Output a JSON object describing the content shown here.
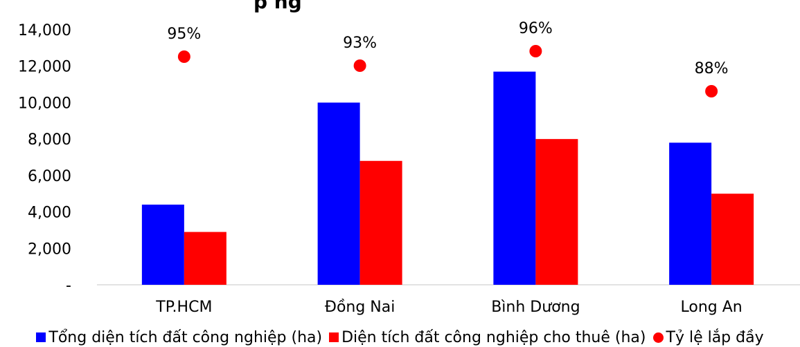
{
  "chart_data": {
    "type": "bar",
    "title_fragment": "p ng",
    "categories": [
      "TP.HCM",
      "Đồng Nai",
      "Bình Dương",
      "Long An"
    ],
    "y_tick_labels": [
      "-",
      "2,000",
      "4,000",
      "6,000",
      "8,000",
      "10,000",
      "12,000",
      "14,000"
    ],
    "ylim": [
      0,
      14000
    ],
    "grid": false,
    "legend_position": "bottom",
    "series": [
      {
        "name": "Tổng diện tích đất công nghiệp (ha)",
        "type": "bar",
        "color": "#0000ff",
        "values": [
          4400,
          10000,
          11700,
          7800
        ]
      },
      {
        "name": "Diện tích đất công nghiệp cho thuê (ha)",
        "type": "bar",
        "color": "#ff0000",
        "values": [
          2900,
          6800,
          8000,
          5000
        ]
      },
      {
        "name": "Tỷ lệ lắp đầy",
        "type": "scatter",
        "color": "#ff0000",
        "values": [
          95,
          93,
          96,
          88
        ],
        "labels": [
          "95%",
          "93%",
          "96%",
          "88%"
        ]
      }
    ]
  }
}
